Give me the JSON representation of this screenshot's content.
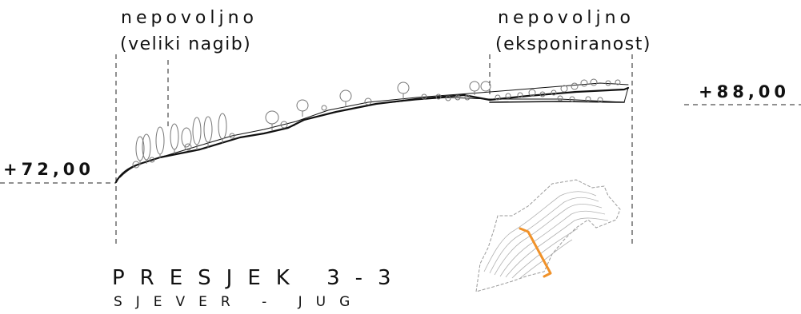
{
  "left_note": {
    "line1": "nepovoljno",
    "line2": "(veliki nagib)"
  },
  "right_note": {
    "line1": "nepovoljno",
    "line2": "(eksponiranost)"
  },
  "elevation_left": "+72,00",
  "elevation_right": "+88,00",
  "title": "PRESJEK 3-3",
  "subtitle": "SJEVER - JUG",
  "colors": {
    "line": "#111111",
    "tree": "#777777",
    "map": "#9a9a9a",
    "section_marker": "#f0922a"
  }
}
